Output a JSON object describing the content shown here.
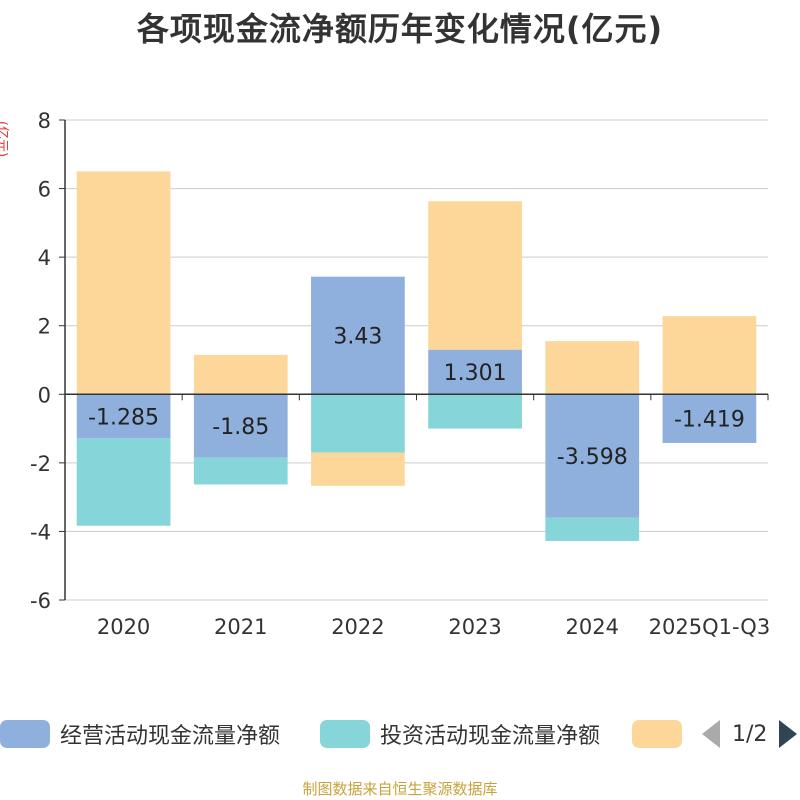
{
  "chart_data": {
    "type": "bar",
    "stacked": true,
    "title": "各项现金流净额历年变化情况(亿元)",
    "ylabel": "(亿元)",
    "ylim": [
      -6,
      8
    ],
    "yticks": [
      -6,
      -4,
      -2,
      0,
      2,
      4,
      6,
      8
    ],
    "grid": true,
    "categories": [
      "2020",
      "2021",
      "2022",
      "2023",
      "2024",
      "2025Q1-Q3"
    ],
    "series": [
      {
        "name": "经营活动现金流量净额",
        "color": "#8fafdc",
        "values": [
          -1.285,
          -1.85,
          3.43,
          1.301,
          -3.598,
          -1.419
        ],
        "show_labels": true
      },
      {
        "name": "投资活动现金流量净额",
        "color": "#86d5d9",
        "values": [
          -2.55,
          -0.78,
          -1.7,
          -1.0,
          -0.68,
          0
        ],
        "show_labels": false
      },
      {
        "name": "",
        "color": "#fdd799",
        "values": [
          6.5,
          1.15,
          -0.97,
          4.33,
          1.55,
          2.28
        ],
        "show_labels": false
      }
    ],
    "legend": {
      "position": "bottom",
      "page": "1/2"
    }
  },
  "footer": "制图数据来自恒生聚源数据库"
}
